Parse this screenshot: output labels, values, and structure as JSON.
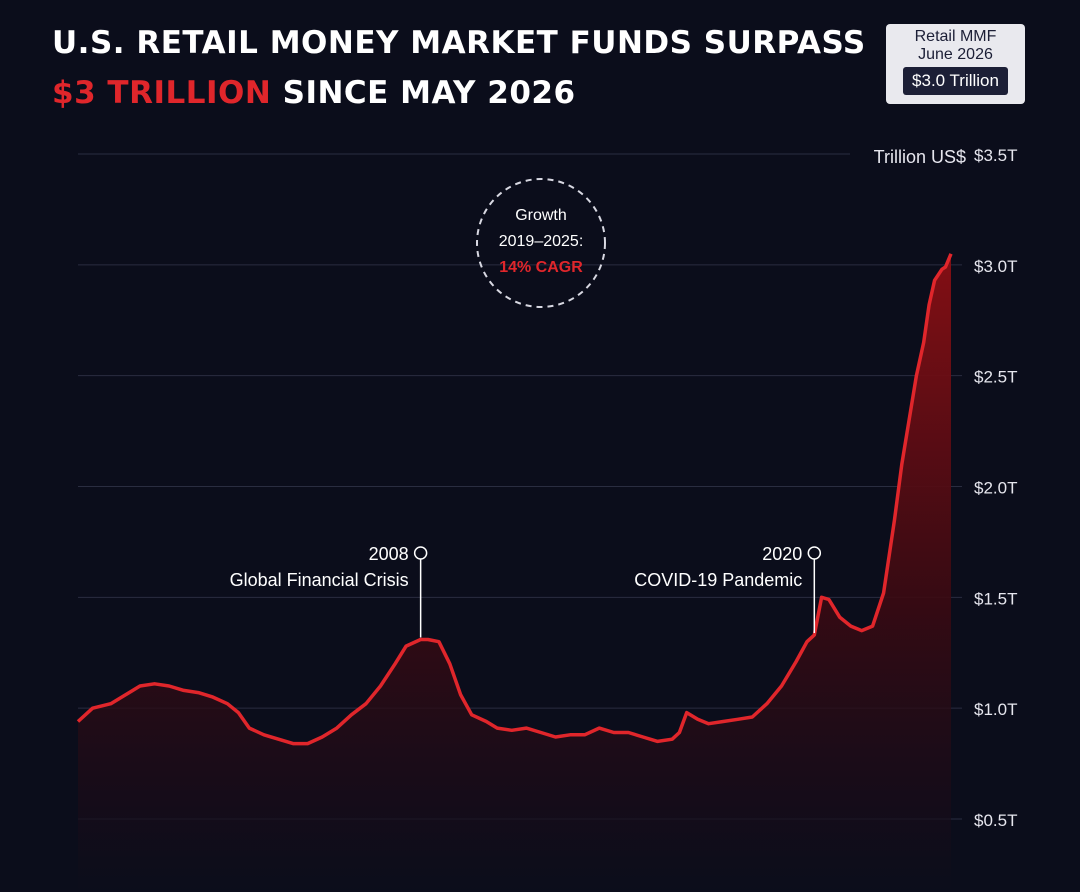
{
  "title": {
    "line1": "U.S. RETAIL MONEY MARKET FUNDS SURPASS",
    "line2_highlight": "$3 TRILLION",
    "line2_rest": " SINCE MAY 2026"
  },
  "badge": {
    "line1": "Retail MMF",
    "line2": "June 2026",
    "value": "$3.0 Trillion"
  },
  "colors": {
    "background": "#0b0d1b",
    "line": "#e0262b",
    "highlight": "#e0262b",
    "grid": "#2a2d40"
  },
  "chart_data": {
    "type": "area",
    "unit_label": "Trillion US$",
    "ylim": [
      0.5,
      3.5
    ],
    "yticks": [
      0.5,
      1.0,
      1.5,
      2.0,
      2.5,
      3.0,
      3.5
    ],
    "ytick_labels": [
      "$0.5T",
      "$1.0T",
      "$1.5T",
      "$2.0T",
      "$2.5T",
      "$3.0T",
      "$3.5T"
    ],
    "xlim": [
      2002.5,
      2026.45
    ],
    "grid": true,
    "series": [
      {
        "values": [
          [
            2002.5,
            0.94
          ],
          [
            2002.9,
            1.0
          ],
          [
            2003.4,
            1.02
          ],
          [
            2003.8,
            1.06
          ],
          [
            2004.2,
            1.1
          ],
          [
            2004.6,
            1.11
          ],
          [
            2005.0,
            1.1
          ],
          [
            2005.4,
            1.08
          ],
          [
            2005.8,
            1.07
          ],
          [
            2006.2,
            1.05
          ],
          [
            2006.6,
            1.02
          ],
          [
            2006.9,
            0.98
          ],
          [
            2007.2,
            0.91
          ],
          [
            2007.6,
            0.88
          ],
          [
            2008.0,
            0.86
          ],
          [
            2008.4,
            0.84
          ],
          [
            2008.8,
            0.84
          ],
          [
            2009.2,
            0.87
          ],
          [
            2009.6,
            0.91
          ],
          [
            2010.0,
            0.97
          ],
          [
            2010.4,
            1.02
          ],
          [
            2010.8,
            1.1
          ],
          [
            2011.2,
            1.2
          ],
          [
            2011.5,
            1.28
          ],
          [
            2011.9,
            1.31
          ],
          [
            2012.1,
            1.31
          ],
          [
            2012.4,
            1.3
          ],
          [
            2012.7,
            1.2
          ],
          [
            2013.0,
            1.06
          ],
          [
            2013.3,
            0.97
          ],
          [
            2013.7,
            0.94
          ],
          [
            2014.0,
            0.91
          ],
          [
            2014.4,
            0.9
          ],
          [
            2014.8,
            0.91
          ],
          [
            2015.2,
            0.89
          ],
          [
            2015.6,
            0.87
          ],
          [
            2016.0,
            0.88
          ],
          [
            2016.4,
            0.88
          ],
          [
            2016.8,
            0.91
          ],
          [
            2017.2,
            0.89
          ],
          [
            2017.6,
            0.89
          ],
          [
            2018.0,
            0.87
          ],
          [
            2018.4,
            0.85
          ],
          [
            2018.8,
            0.86
          ],
          [
            2019.0,
            0.89
          ],
          [
            2019.2,
            0.98
          ],
          [
            2019.5,
            0.95
          ],
          [
            2019.8,
            0.93
          ],
          [
            2020.2,
            0.94
          ],
          [
            2020.6,
            0.95
          ],
          [
            2021.0,
            0.96
          ],
          [
            2021.4,
            1.02
          ],
          [
            2021.8,
            1.1
          ],
          [
            2022.2,
            1.21
          ],
          [
            2022.5,
            1.3
          ],
          [
            2022.7,
            1.33
          ],
          [
            2022.9,
            1.5
          ],
          [
            2023.1,
            1.49
          ],
          [
            2023.4,
            1.41
          ],
          [
            2023.7,
            1.37
          ],
          [
            2024.0,
            1.35
          ],
          [
            2024.3,
            1.37
          ],
          [
            2024.6,
            1.52
          ],
          [
            2024.9,
            1.85
          ],
          [
            2025.1,
            2.1
          ],
          [
            2025.3,
            2.3
          ],
          [
            2025.5,
            2.5
          ],
          [
            2025.7,
            2.65
          ],
          [
            2025.85,
            2.82
          ],
          [
            2026.0,
            2.93
          ],
          [
            2026.2,
            2.98
          ],
          [
            2026.3,
            2.99
          ],
          [
            2026.45,
            3.05
          ]
        ]
      }
    ],
    "annotations": [
      {
        "year_label": "2008",
        "text": "Global Financial Crisis",
        "x": 2011.9,
        "y": 1.31
      },
      {
        "year_label": "2020",
        "text": "COVID-19 Pandemic",
        "x": 2022.7,
        "y": 1.33
      }
    ],
    "callout": {
      "line1": "Growth",
      "line2": "2019–2025:",
      "line3": "14% CAGR"
    }
  }
}
